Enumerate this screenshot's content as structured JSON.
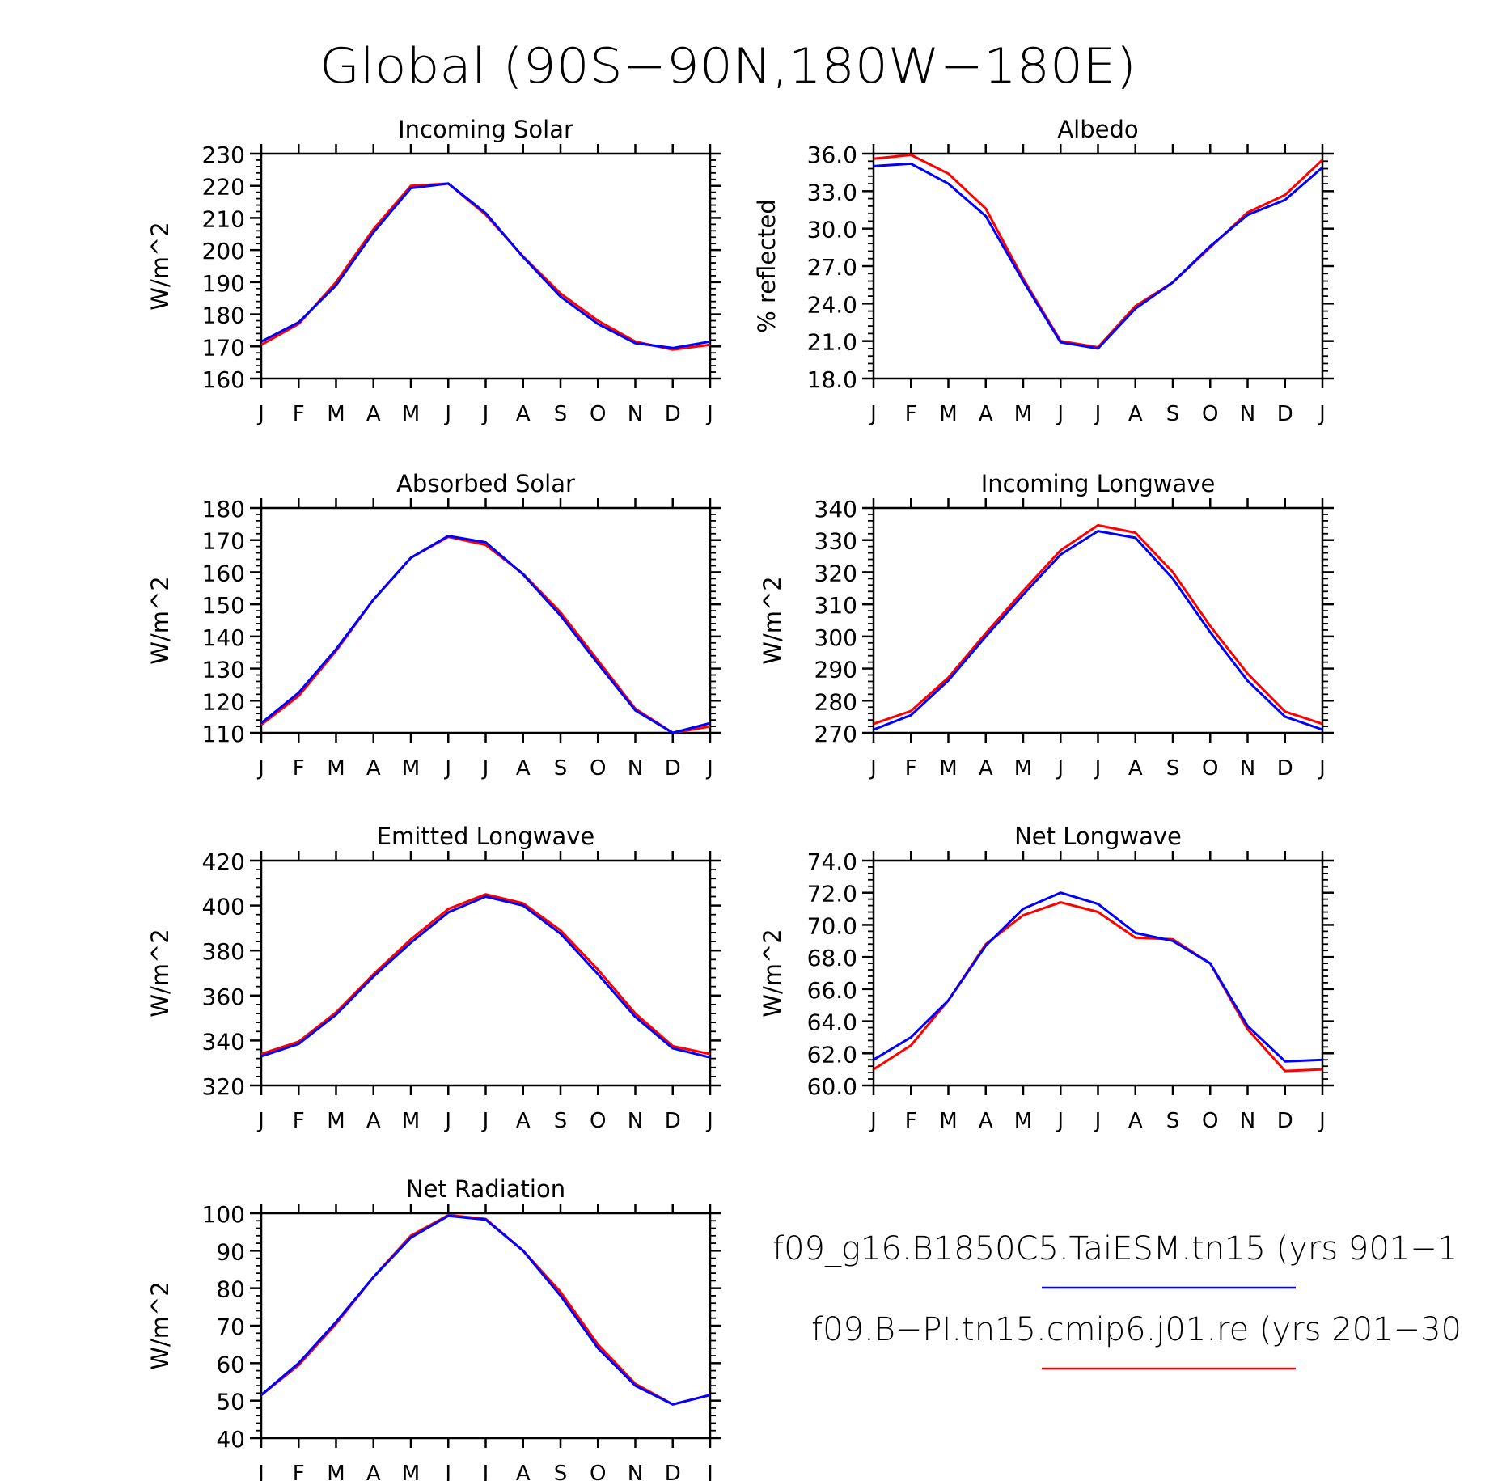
{
  "title": "Global (90S−90N,180W−180E)",
  "legend": [
    {
      "label": "f09_g16.B1850C5.TaiESM.tn15 (yrs 901−1",
      "color": "#0000ff"
    },
    {
      "label": "f09.B−PI.tn15.cmip6.j01.re (yrs 201−30",
      "color": "#ff0000"
    }
  ],
  "chart_data": [
    {
      "type": "line",
      "title": "Incoming Solar",
      "ylabel": "W/m^2",
      "categories": [
        "J",
        "F",
        "M",
        "A",
        "M",
        "J",
        "J",
        "A",
        "S",
        "O",
        "N",
        "D",
        "J"
      ],
      "ylim": [
        160,
        230
      ],
      "yticks": [
        "160",
        "170",
        "180",
        "190",
        "200",
        "210",
        "220",
        "230"
      ],
      "series": [
        {
          "color": "#ff0000",
          "values": [
            170.5,
            177,
            190,
            206.5,
            220,
            220.7,
            211,
            198,
            186.5,
            178,
            171.5,
            169,
            170.5
          ]
        },
        {
          "color": "#0000ff",
          "values": [
            171.5,
            177.5,
            189,
            205.5,
            219.3,
            220.7,
            211.5,
            197.8,
            185.5,
            177,
            171,
            169.5,
            171.5
          ]
        }
      ]
    },
    {
      "type": "line",
      "title": "Albedo",
      "ylabel": "% reflected",
      "categories": [
        "J",
        "F",
        "M",
        "A",
        "M",
        "J",
        "J",
        "A",
        "S",
        "O",
        "N",
        "D",
        "J"
      ],
      "ylim": [
        18,
        36
      ],
      "yticks": [
        "18.0",
        "21.0",
        "24.0",
        "27.0",
        "30.0",
        "33.0",
        "36.0"
      ],
      "series": [
        {
          "color": "#ff0000",
          "values": [
            35.6,
            35.9,
            34.4,
            31.6,
            26.0,
            21.0,
            20.5,
            23.8,
            25.7,
            28.5,
            31.3,
            32.7,
            35.5
          ]
        },
        {
          "color": "#0000ff",
          "values": [
            35.0,
            35.2,
            33.6,
            31.0,
            25.8,
            20.9,
            20.4,
            23.6,
            25.7,
            28.6,
            31.1,
            32.3,
            34.9
          ]
        }
      ]
    },
    {
      "type": "line",
      "title": "Absorbed Solar",
      "ylabel": "W/m^2",
      "categories": [
        "J",
        "F",
        "M",
        "A",
        "M",
        "J",
        "J",
        "A",
        "S",
        "O",
        "N",
        "D",
        "J"
      ],
      "ylim": [
        110,
        180
      ],
      "yticks": [
        "110",
        "120",
        "130",
        "140",
        "150",
        "160",
        "170",
        "180"
      ],
      "series": [
        {
          "color": "#ff0000",
          "values": [
            112.5,
            121.5,
            135.5,
            151.5,
            164.5,
            171,
            168.5,
            159.5,
            147.5,
            132.5,
            117.5,
            110,
            112
          ]
        },
        {
          "color": "#0000ff",
          "values": [
            113,
            122.5,
            136,
            151.5,
            164.5,
            171.3,
            169.3,
            159.3,
            146.5,
            131.5,
            117,
            110,
            113
          ]
        }
      ]
    },
    {
      "type": "line",
      "title": "Incoming Longwave",
      "ylabel": "W/m^2",
      "categories": [
        "J",
        "F",
        "M",
        "A",
        "M",
        "J",
        "J",
        "A",
        "S",
        "O",
        "N",
        "D",
        "J"
      ],
      "ylim": [
        270,
        340
      ],
      "yticks": [
        "270",
        "280",
        "290",
        "300",
        "310",
        "320",
        "330",
        "340"
      ],
      "series": [
        {
          "color": "#ff0000",
          "values": [
            272.8,
            276.8,
            287.2,
            301,
            314.2,
            326.8,
            334.6,
            332.3,
            320,
            303.2,
            288.4,
            276.6,
            272.8
          ]
        },
        {
          "color": "#0000ff",
          "values": [
            271,
            275.5,
            286.3,
            300,
            313,
            325.5,
            332.8,
            330.7,
            318,
            301.3,
            286.2,
            275,
            271
          ]
        }
      ]
    },
    {
      "type": "line",
      "title": "Emitted Longwave",
      "ylabel": "W/m^2",
      "categories": [
        "J",
        "F",
        "M",
        "A",
        "M",
        "J",
        "J",
        "A",
        "S",
        "O",
        "N",
        "D",
        "J"
      ],
      "ylim": [
        320,
        420
      ],
      "yticks": [
        "320",
        "340",
        "360",
        "380",
        "400",
        "420"
      ],
      "series": [
        {
          "color": "#ff0000",
          "values": [
            334,
            339.5,
            352.5,
            369.5,
            385,
            398.5,
            405,
            401,
            389,
            371.5,
            352,
            337.5,
            334
          ]
        },
        {
          "color": "#0000ff",
          "values": [
            333,
            338.5,
            351.5,
            368.5,
            383.5,
            397,
            404,
            400,
            387.5,
            369.5,
            350.5,
            336.5,
            332.5
          ]
        }
      ]
    },
    {
      "type": "line",
      "title": "Net Longwave",
      "ylabel": "W/m^2",
      "categories": [
        "J",
        "F",
        "M",
        "A",
        "M",
        "J",
        "J",
        "A",
        "S",
        "O",
        "N",
        "D",
        "J"
      ],
      "ylim": [
        60,
        74
      ],
      "yticks": [
        "60.0",
        "62.0",
        "64.0",
        "66.0",
        "68.0",
        "70.0",
        "72.0",
        "74.0"
      ],
      "series": [
        {
          "color": "#ff0000",
          "values": [
            61.0,
            62.5,
            65.3,
            68.8,
            70.6,
            71.4,
            70.8,
            69.2,
            69.1,
            67.6,
            63.5,
            60.9,
            61.0
          ]
        },
        {
          "color": "#0000ff",
          "values": [
            61.6,
            63.0,
            65.3,
            68.7,
            71.0,
            72.0,
            71.3,
            69.5,
            69.0,
            67.6,
            63.7,
            61.5,
            61.6
          ]
        }
      ]
    },
    {
      "type": "line",
      "title": "Net Radiation",
      "ylabel": "W/m^2",
      "categories": [
        "J",
        "F",
        "M",
        "A",
        "M",
        "J",
        "J",
        "A",
        "S",
        "O",
        "N",
        "D",
        "J"
      ],
      "ylim": [
        40,
        100
      ],
      "yticks": [
        "40",
        "50",
        "60",
        "70",
        "80",
        "90",
        "100"
      ],
      "series": [
        {
          "color": "#ff0000",
          "values": [
            51.5,
            59.5,
            70.5,
            83,
            94,
            99.5,
            98.5,
            90,
            79,
            65,
            54.5,
            49,
            51.5
          ]
        },
        {
          "color": "#0000ff",
          "values": [
            51.5,
            60,
            71,
            83,
            93.5,
            99.3,
            98.3,
            90,
            78,
            64,
            54,
            49,
            51.5
          ]
        }
      ]
    }
  ]
}
